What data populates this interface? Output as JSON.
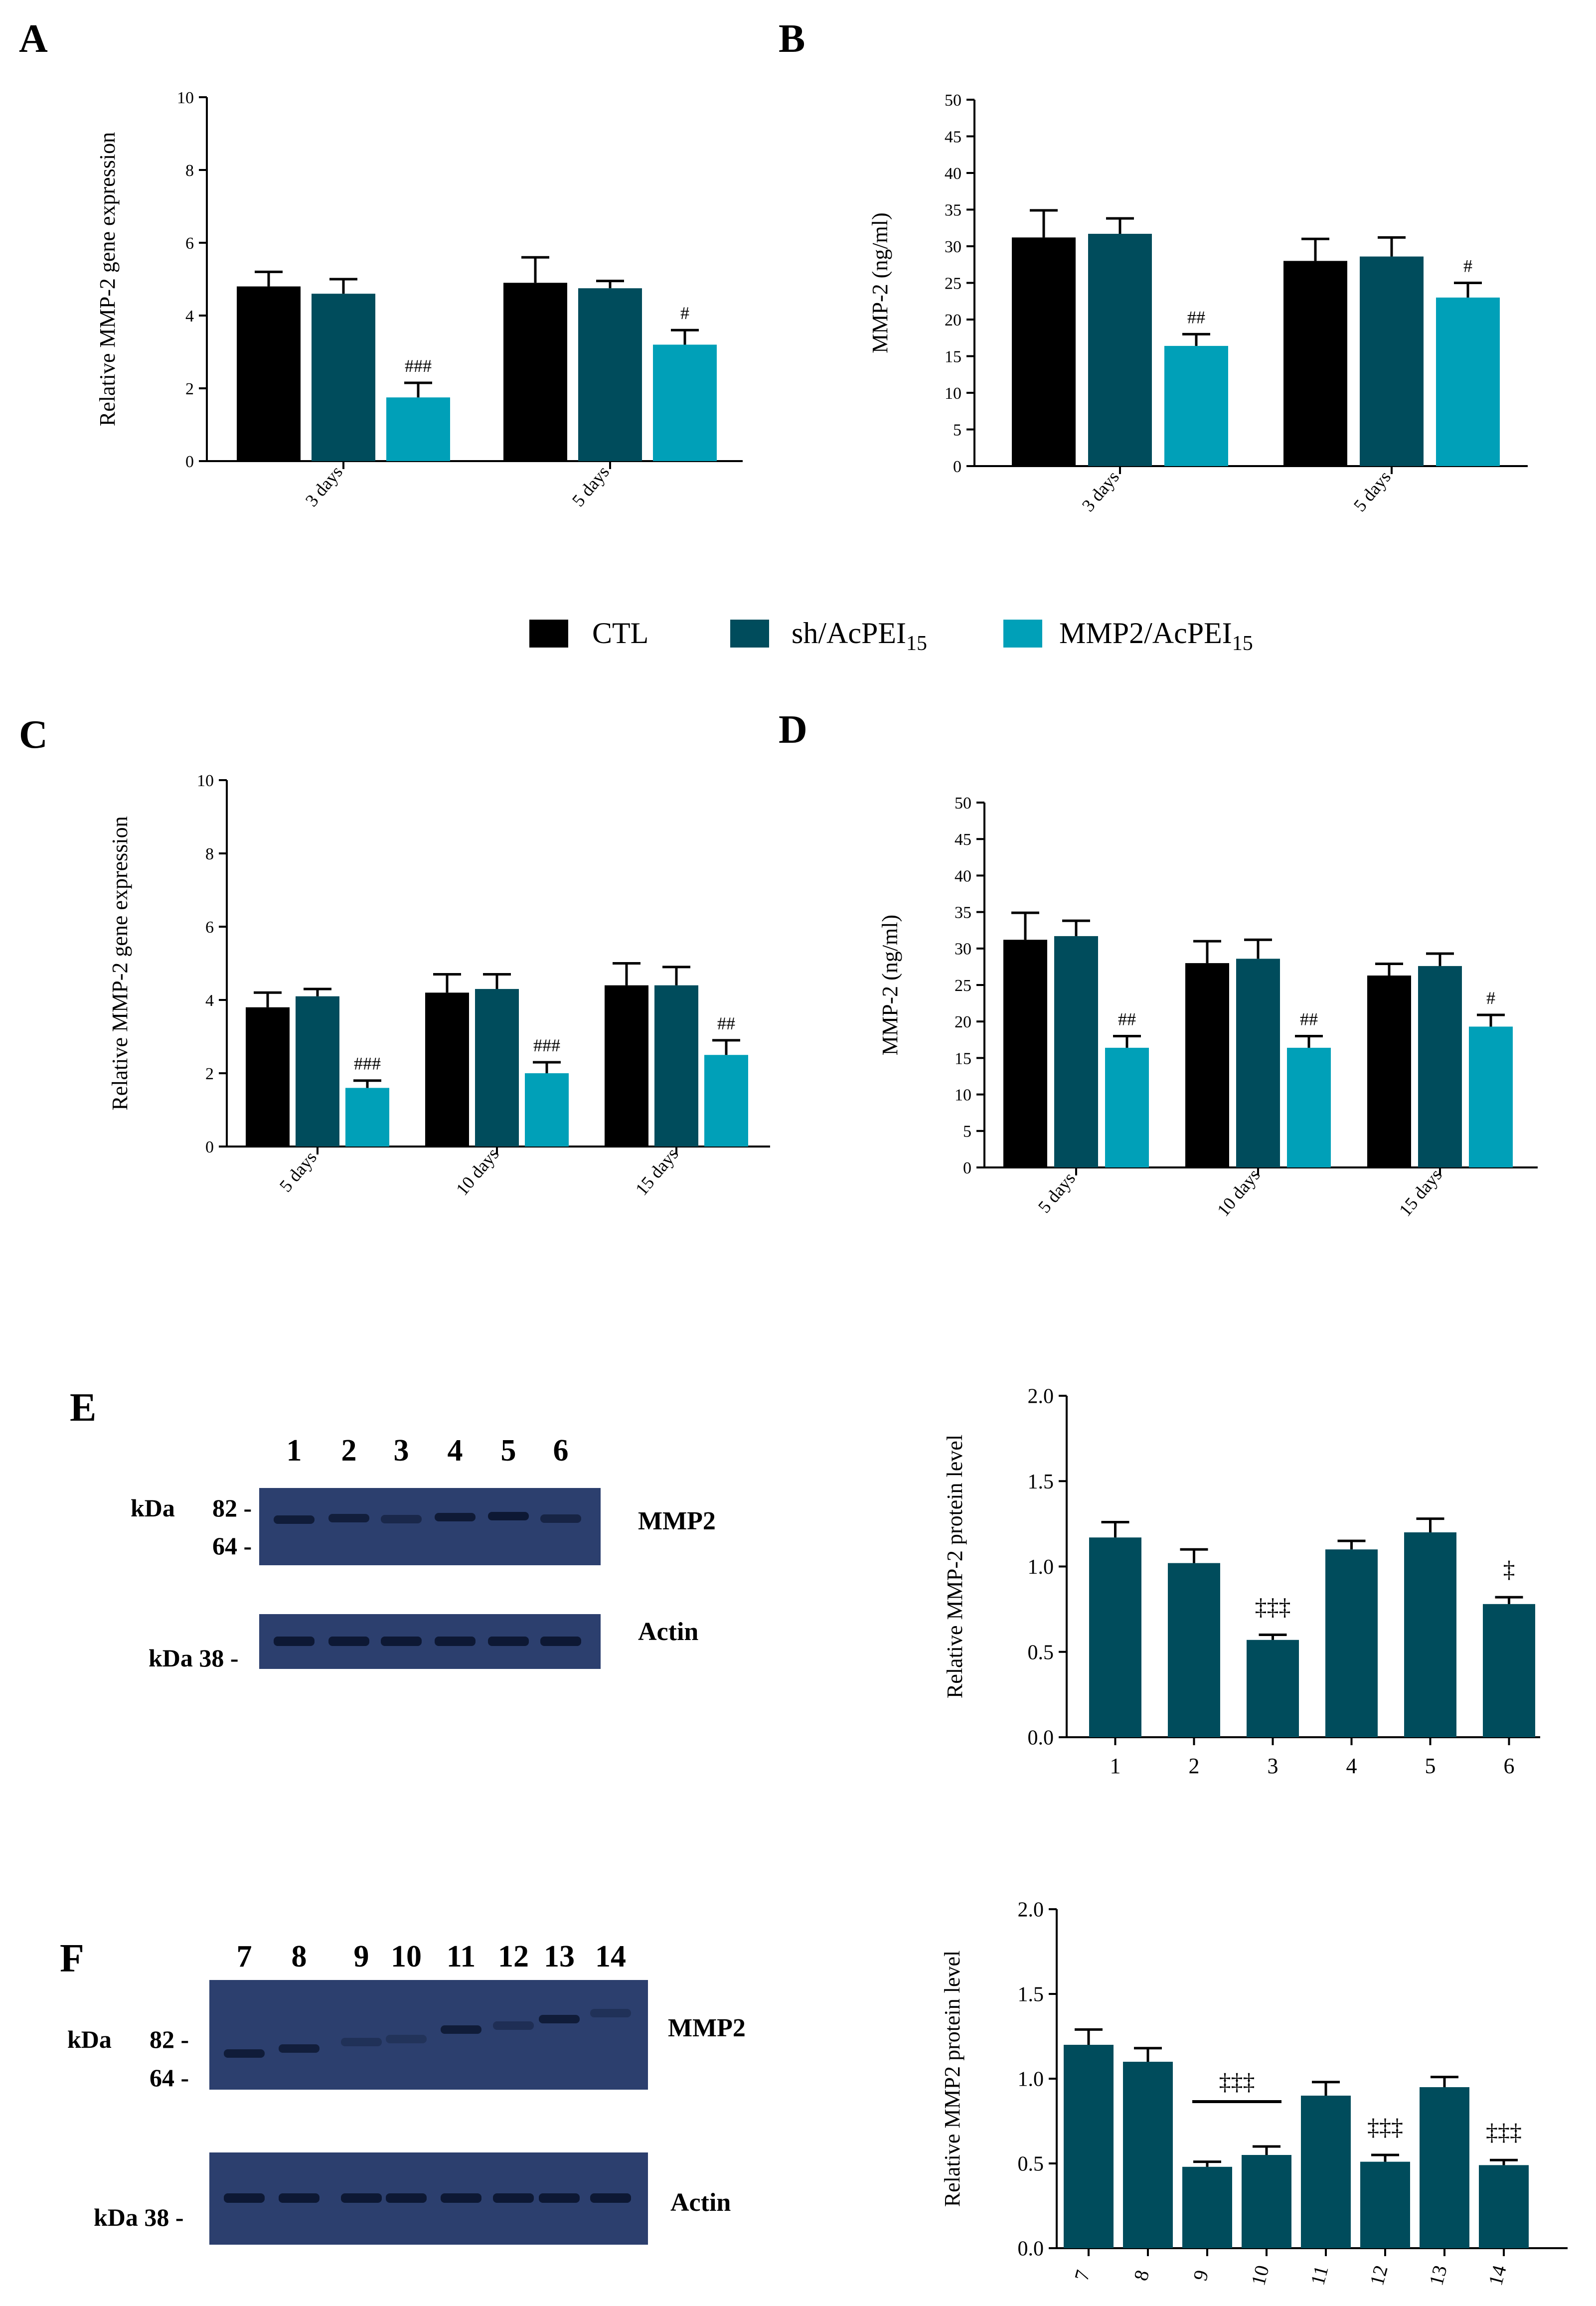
{
  "panel_labels": {
    "A": "A",
    "B": "B",
    "C": "C",
    "D": "D",
    "E": "E",
    "F": "F"
  },
  "colors": {
    "CTL": "#000000",
    "sh/AcPEI15": "#004c5c",
    "MMP2/AcPEI15": "#00a0b8",
    "blot_bg": "#2c3f6e",
    "blot_band": "#0c1630"
  },
  "legend": [
    {
      "key": "CTL",
      "label": "CTL",
      "sub": ""
    },
    {
      "key": "sh/AcPEI15",
      "label": "sh/AcPEI",
      "sub": "15"
    },
    {
      "key": "MMP2/AcPEI15",
      "label": "MMP2/AcPEI",
      "sub": "15"
    }
  ],
  "blots": {
    "E": {
      "lanes": [
        "1",
        "2",
        "3",
        "4",
        "5",
        "6"
      ],
      "mmp2_label": "MMP2",
      "actin_label": "Actin",
      "kda_text": "kDa",
      "marker_82": "82 -",
      "marker_64": "64 -",
      "marker_38": "kDa 38 -"
    },
    "F": {
      "lanes": [
        "7",
        "8",
        "9",
        "10",
        "11",
        "12",
        "13",
        "14"
      ],
      "mmp2_label": "MMP2",
      "actin_label": "Actin",
      "kda_text": "kDa",
      "marker_82": "82 -",
      "marker_64": "64 -",
      "marker_38": "kDa 38 -"
    }
  },
  "chart_data": [
    {
      "id": "A",
      "type": "bar",
      "title": "",
      "ylabel": "Relative MMP-2 gene expression",
      "xlabel": "",
      "ylim": [
        0,
        10
      ],
      "yticks": [
        0,
        2,
        4,
        6,
        8,
        10
      ],
      "categories": [
        "3 days",
        "5 days"
      ],
      "series": [
        {
          "name": "CTL",
          "values": [
            4.8,
            4.9
          ],
          "errors": [
            0.4,
            0.7
          ],
          "annotations": [
            "",
            ""
          ]
        },
        {
          "name": "sh/AcPEI15",
          "values": [
            4.6,
            4.75
          ],
          "errors": [
            0.4,
            0.2
          ],
          "annotations": [
            "",
            ""
          ]
        },
        {
          "name": "MMP2/AcPEI15",
          "values": [
            1.75,
            3.2
          ],
          "errors": [
            0.4,
            0.4
          ],
          "annotations": [
            "###",
            "#"
          ]
        }
      ]
    },
    {
      "id": "B",
      "type": "bar",
      "title": "",
      "ylabel": "MMP-2 (ng/ml)",
      "xlabel": "",
      "ylim": [
        0,
        50
      ],
      "yticks": [
        0,
        5,
        10,
        15,
        20,
        25,
        30,
        35,
        40,
        45,
        50
      ],
      "categories": [
        "3 days",
        "5 days"
      ],
      "series": [
        {
          "name": "CTL",
          "values": [
            31.2,
            28
          ],
          "errors": [
            3.7,
            3.0
          ],
          "annotations": [
            "",
            ""
          ]
        },
        {
          "name": "sh/AcPEI15",
          "values": [
            31.7,
            28.6
          ],
          "errors": [
            2.1,
            2.6
          ],
          "annotations": [
            "",
            ""
          ]
        },
        {
          "name": "MMP2/AcPEI15",
          "values": [
            16.4,
            23
          ],
          "errors": [
            1.6,
            2.0
          ],
          "annotations": [
            "##",
            "#"
          ]
        }
      ]
    },
    {
      "id": "C",
      "type": "bar",
      "title": "",
      "ylabel": "Relative MMP-2 gene expression",
      "xlabel": "",
      "ylim": [
        0,
        10
      ],
      "yticks": [
        0,
        2,
        4,
        6,
        8,
        10
      ],
      "categories": [
        "5 days",
        "10 days",
        "15 days"
      ],
      "series": [
        {
          "name": "CTL",
          "values": [
            3.8,
            4.2,
            4.4
          ],
          "errors": [
            0.4,
            0.5,
            0.6
          ],
          "annotations": [
            "",
            "",
            ""
          ]
        },
        {
          "name": "sh/AcPEI15",
          "values": [
            4.1,
            4.3,
            4.4
          ],
          "errors": [
            0.2,
            0.4,
            0.5
          ],
          "annotations": [
            "",
            "",
            ""
          ]
        },
        {
          "name": "MMP2/AcPEI15",
          "values": [
            1.6,
            2.0,
            2.5
          ],
          "errors": [
            0.2,
            0.3,
            0.4
          ],
          "annotations": [
            "###",
            "###",
            "##"
          ]
        }
      ]
    },
    {
      "id": "D",
      "type": "bar",
      "title": "",
      "ylabel": "MMP-2 (ng/ml)",
      "xlabel": "",
      "ylim": [
        0,
        50
      ],
      "yticks": [
        0,
        5,
        10,
        15,
        20,
        25,
        30,
        35,
        40,
        45,
        50
      ],
      "categories": [
        "5 days",
        "10 days",
        "15 days"
      ],
      "series": [
        {
          "name": "CTL",
          "values": [
            31.2,
            28,
            26.3
          ],
          "errors": [
            3.7,
            3.0,
            1.6
          ],
          "annotations": [
            "",
            "",
            ""
          ]
        },
        {
          "name": "sh/AcPEI15",
          "values": [
            31.7,
            28.6,
            27.6
          ],
          "errors": [
            2.1,
            2.6,
            1.7
          ],
          "annotations": [
            "",
            "",
            ""
          ]
        },
        {
          "name": "MMP2/AcPEI15",
          "values": [
            16.4,
            16.4,
            19.3
          ],
          "errors": [
            1.6,
            1.6,
            1.6
          ],
          "annotations": [
            "##",
            "##",
            "#"
          ]
        }
      ]
    },
    {
      "id": "E-quant",
      "type": "bar",
      "title": "",
      "ylabel": "Relative MMP-2 protein level",
      "xlabel": "",
      "ylim": [
        0,
        2.0
      ],
      "yticks": [
        "0.0",
        "0.5",
        "1.0",
        "1.5",
        "2.0"
      ],
      "categories": [
        "1",
        "2",
        "3",
        "4",
        "5",
        "6"
      ],
      "values": [
        1.17,
        1.02,
        0.57,
        1.1,
        1.2,
        0.78
      ],
      "errors": [
        0.09,
        0.08,
        0.03,
        0.05,
        0.08,
        0.04
      ],
      "annotations": [
        "",
        "",
        "‡‡‡",
        "",
        "",
        "‡"
      ],
      "color": "#004c5c"
    },
    {
      "id": "F-quant",
      "type": "bar",
      "title": "",
      "ylabel": "Relative MMP2 protein level",
      "xlabel": "",
      "ylim": [
        0,
        2.0
      ],
      "yticks": [
        "0.0",
        "0.5",
        "1.0",
        "1.5",
        "2.0"
      ],
      "categories": [
        "7",
        "8",
        "9",
        "10",
        "11",
        "12",
        "13",
        "14"
      ],
      "values": [
        1.2,
        1.1,
        0.48,
        0.55,
        0.9,
        0.51,
        0.95,
        0.49
      ],
      "errors": [
        0.09,
        0.08,
        0.03,
        0.05,
        0.08,
        0.04,
        0.06,
        0.03
      ],
      "annotations": [
        "",
        "",
        "",
        "",
        "",
        "‡‡‡",
        "",
        "‡‡‡"
      ],
      "group_annotation": {
        "from": "9",
        "to": "10",
        "text": "‡‡‡"
      },
      "color": "#004c5c"
    }
  ]
}
